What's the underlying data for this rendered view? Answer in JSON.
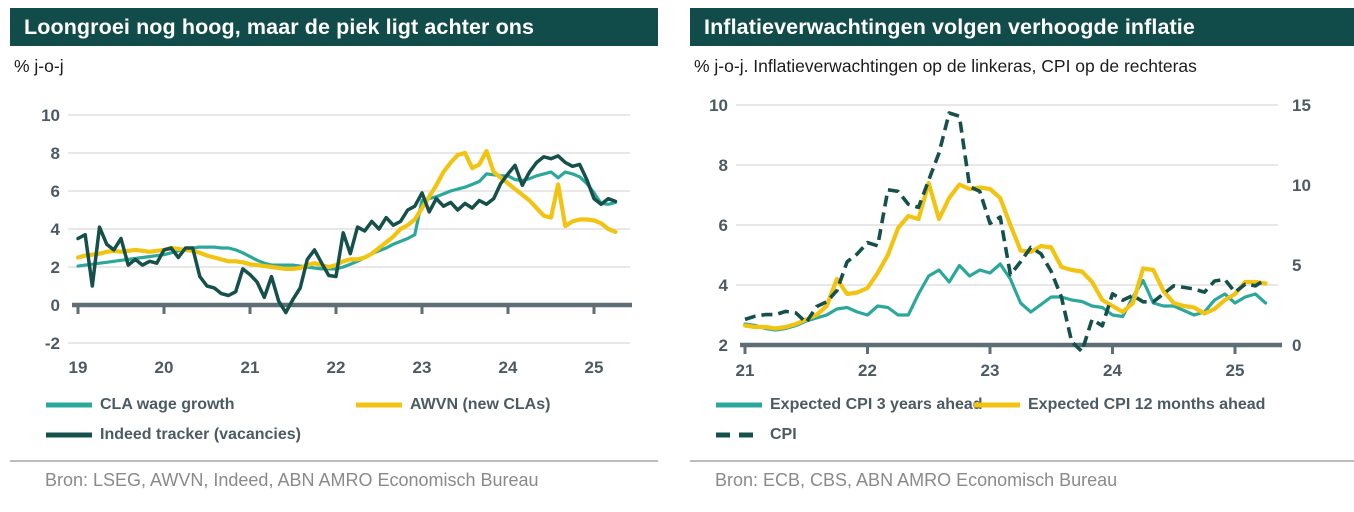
{
  "colors": {
    "header_bg": "#114C4A",
    "header_text": "#FFFFFF",
    "axis_label": "#4C5B63",
    "gridline": "#D9D9D9",
    "axis_line": "#5D6E76",
    "source_text": "#8A8A8A",
    "divider": "#BDBDBD",
    "subtitle_text": "#1C1C1C",
    "background": "#FFFFFF",
    "teal": "#2BA89B",
    "yellow": "#F2C311",
    "dark_teal": "#16504B"
  },
  "chart_data": [
    {
      "type": "line",
      "title": "Loongroei nog hoog, maar de piek ligt achter ons",
      "subtitle": "% j-o-j",
      "source": "Bron: LSEG, AWVN, Indeed, ABN AMRO Economisch Bureau",
      "x_base": 19,
      "x_ticks": [
        "19",
        "20",
        "21",
        "22",
        "23",
        "24",
        "25"
      ],
      "ylim": [
        -2,
        10
      ],
      "y_ticks": [
        10,
        8,
        6,
        4,
        2,
        0,
        -2
      ],
      "baseline": 0,
      "grid": true,
      "legend_position": "bottom",
      "series": [
        {
          "name": "CLA wage growth",
          "color": "#2BA89B",
          "axis": "left",
          "dash": false,
          "x_start": 19.0,
          "x_step": 0.08333,
          "values": [
            2.05,
            2.1,
            2.15,
            2.2,
            2.25,
            2.3,
            2.35,
            2.4,
            2.45,
            2.5,
            2.55,
            2.6,
            2.65,
            2.75,
            2.85,
            2.95,
            3.0,
            3.05,
            3.05,
            3.05,
            3.0,
            3.0,
            2.9,
            2.75,
            2.55,
            2.35,
            2.2,
            2.1,
            2.1,
            2.1,
            2.1,
            2.05,
            2.0,
            1.95,
            1.9,
            1.9,
            1.9,
            2.0,
            2.15,
            2.3,
            2.5,
            2.7,
            2.85,
            3.0,
            3.2,
            3.35,
            3.5,
            3.7,
            5.5,
            5.6,
            5.7,
            5.85,
            6.0,
            6.1,
            6.2,
            6.35,
            6.5,
            6.9,
            6.85,
            6.8,
            6.8,
            6.6,
            6.55,
            6.65,
            6.8,
            6.9,
            7.0,
            6.7,
            7.0,
            6.9,
            6.75,
            6.4,
            5.9,
            5.35,
            5.3,
            5.4
          ]
        },
        {
          "name": "AWVN (new CLAs)",
          "color": "#F2C311",
          "axis": "left",
          "dash": false,
          "x_start": 19.0,
          "x_step": 0.08333,
          "values": [
            2.5,
            2.6,
            2.65,
            2.7,
            2.8,
            2.85,
            2.8,
            2.85,
            2.9,
            2.85,
            2.8,
            2.85,
            2.9,
            3.0,
            2.95,
            2.9,
            2.85,
            2.75,
            2.6,
            2.5,
            2.4,
            2.3,
            2.3,
            2.25,
            2.15,
            2.1,
            2.05,
            2.0,
            1.95,
            1.9,
            1.9,
            1.95,
            2.1,
            2.2,
            2.1,
            2.0,
            2.1,
            2.3,
            2.4,
            2.4,
            2.5,
            2.7,
            3.0,
            3.3,
            3.6,
            4.0,
            4.2,
            4.5,
            5.1,
            5.7,
            6.3,
            7.0,
            7.5,
            7.9,
            8.0,
            7.2,
            7.4,
            8.1,
            7.0,
            6.7,
            6.4,
            6.1,
            5.8,
            5.5,
            5.1,
            4.7,
            4.6,
            6.35,
            4.15,
            4.4,
            4.5,
            4.5,
            4.45,
            4.3,
            4.0,
            3.85
          ]
        },
        {
          "name": "Indeed tracker (vacancies)",
          "color": "#16504B",
          "axis": "left",
          "dash": false,
          "x_start": 19.0,
          "x_step": 0.08333,
          "values": [
            3.5,
            3.7,
            1.0,
            4.1,
            3.2,
            2.9,
            3.5,
            2.1,
            2.4,
            2.1,
            2.3,
            2.2,
            2.9,
            3.0,
            2.5,
            3.0,
            3.0,
            1.5,
            1.0,
            0.9,
            0.6,
            0.5,
            0.7,
            1.9,
            1.6,
            1.2,
            0.4,
            1.5,
            0.2,
            -0.4,
            0.3,
            0.9,
            2.4,
            2.9,
            2.2,
            1.55,
            1.5,
            3.8,
            2.7,
            4.1,
            3.9,
            4.4,
            4.0,
            4.6,
            4.2,
            4.4,
            5.0,
            5.2,
            5.9,
            4.9,
            5.6,
            5.2,
            5.4,
            5.0,
            5.35,
            5.1,
            5.5,
            5.3,
            5.6,
            6.4,
            6.9,
            7.35,
            6.3,
            7.0,
            7.5,
            7.8,
            7.7,
            7.85,
            7.5,
            7.3,
            7.4,
            6.6,
            5.6,
            5.3,
            5.6,
            5.45
          ]
        }
      ]
    },
    {
      "type": "line",
      "title": "Inflatieverwachtingen volgen verhoogde inflatie",
      "subtitle": "% j-o-j. Inflatieverwachtingen op de linkeras, CPI op de rechteras",
      "source": "Bron:  ECB, CBS, ABN AMRO Economisch Bureau",
      "x_base": 21,
      "x_ticks": [
        "21",
        "22",
        "23",
        "24",
        "25"
      ],
      "ylim": [
        2,
        10
      ],
      "y_ticks": [
        10,
        8,
        6,
        4,
        2
      ],
      "ylim_right": [
        0,
        15
      ],
      "y_ticks_right": [
        15,
        10,
        5,
        0
      ],
      "baseline": 2,
      "grid": true,
      "legend_position": "bottom",
      "series": [
        {
          "name": "Expected CPI 3 years ahead",
          "color": "#2BA89B",
          "axis": "left",
          "dash": false,
          "x_start": 21.0,
          "x_step": 0.08333,
          "values": [
            2.7,
            2.65,
            2.55,
            2.5,
            2.55,
            2.65,
            2.8,
            2.9,
            3.0,
            3.2,
            3.25,
            3.1,
            3.0,
            3.3,
            3.25,
            3.0,
            3.0,
            3.7,
            4.3,
            4.5,
            4.1,
            4.65,
            4.3,
            4.5,
            4.4,
            4.7,
            4.2,
            3.4,
            3.1,
            3.35,
            3.6,
            3.6,
            3.5,
            3.45,
            3.3,
            3.25,
            3.0,
            2.95,
            3.6,
            4.15,
            3.4,
            3.3,
            3.3,
            3.15,
            3.0,
            3.1,
            3.5,
            3.7,
            3.4,
            3.6,
            3.7,
            3.4
          ]
        },
        {
          "name": "Expected CPI 12 months ahead",
          "color": "#F2C311",
          "axis": "left",
          "dash": false,
          "x_start": 21.0,
          "x_step": 0.08333,
          "values": [
            2.65,
            2.6,
            2.6,
            2.55,
            2.6,
            2.7,
            2.85,
            3.0,
            3.3,
            4.2,
            3.7,
            3.75,
            3.9,
            4.4,
            5.0,
            5.9,
            6.3,
            6.2,
            7.4,
            6.2,
            6.9,
            7.35,
            7.2,
            7.25,
            7.2,
            6.9,
            6.0,
            5.15,
            5.1,
            5.3,
            5.25,
            4.6,
            4.5,
            4.45,
            4.1,
            3.5,
            3.3,
            3.1,
            3.4,
            4.55,
            4.5,
            3.8,
            3.4,
            3.3,
            3.25,
            3.05,
            3.2,
            3.5,
            3.7,
            4.1,
            4.1,
            4.05
          ]
        },
        {
          "name": "CPI",
          "color": "#16504B",
          "axis": "right",
          "dash": true,
          "x_start": 21.0,
          "x_step": 0.08333,
          "values": [
            1.6,
            1.8,
            1.9,
            1.9,
            2.1,
            2.0,
            1.4,
            2.4,
            2.7,
            3.4,
            5.2,
            5.7,
            6.4,
            6.2,
            9.7,
            9.6,
            8.8,
            8.6,
            10.3,
            12.0,
            14.5,
            14.3,
            9.9,
            9.6,
            7.6,
            8.0,
            4.4,
            5.2,
            6.1,
            5.7,
            4.6,
            3.0,
            0.2,
            -0.4,
            1.6,
            1.2,
            3.2,
            2.8,
            3.1,
            2.7,
            2.7,
            3.2,
            3.7,
            3.6,
            3.5,
            3.3,
            4.0,
            4.1,
            3.3,
            3.8,
            3.7,
            4.1
          ]
        }
      ]
    }
  ]
}
